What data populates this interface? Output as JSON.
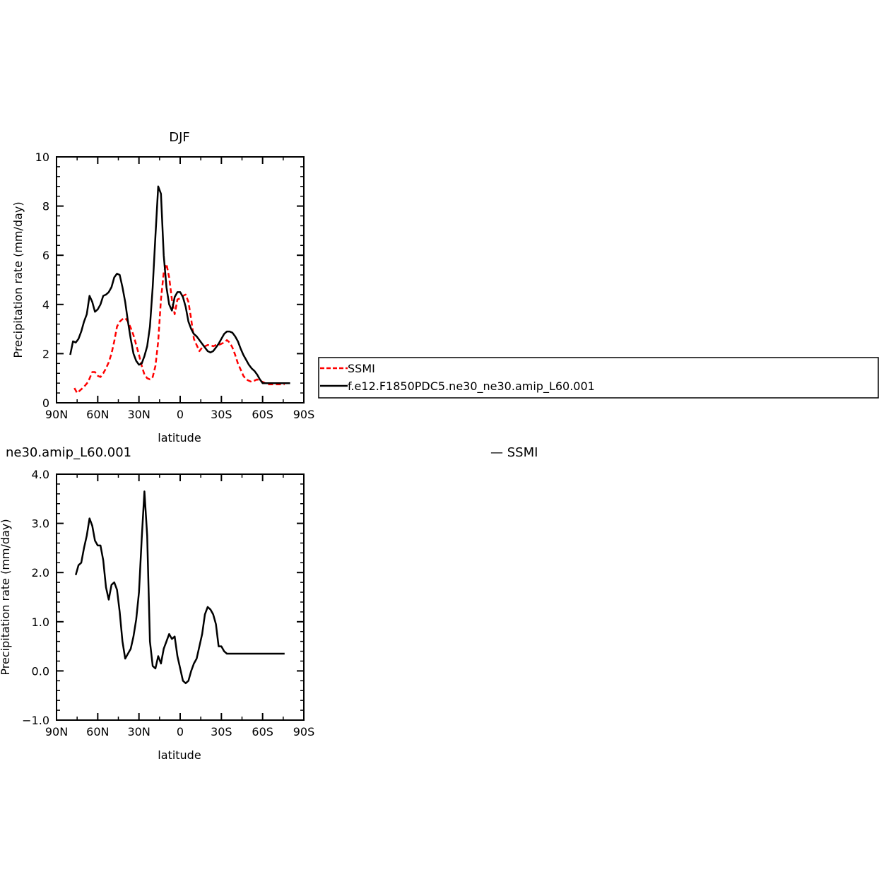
{
  "chart_data": [
    {
      "type": "line",
      "title": "DJF",
      "xlabel": "latitude",
      "ylabel": "Precipitation rate (mm/day)",
      "xlim": [
        90,
        -90
      ],
      "ylim": [
        0,
        10
      ],
      "xticks": [
        90,
        60,
        30,
        0,
        -30,
        -60,
        -90
      ],
      "xtick_labels": [
        "90N",
        "60N",
        "30N",
        "0",
        "30S",
        "60S",
        "90S"
      ],
      "yticks": [
        0,
        2,
        4,
        6,
        8,
        10
      ],
      "ytick_labels": [
        "0",
        "2",
        "4",
        "6",
        "8",
        "10"
      ],
      "grid": false,
      "legend_position": "right",
      "series": [
        {
          "name": "SSMI",
          "color": "#ff0000",
          "style": "dashed",
          "x": [
            77,
            75,
            73,
            70,
            67,
            64,
            62,
            60,
            58,
            56,
            54,
            52,
            50,
            48,
            46,
            44,
            42,
            40,
            38,
            36,
            34,
            32,
            30,
            28,
            26,
            24,
            22,
            20,
            18,
            16,
            14,
            12,
            10,
            8,
            6,
            4,
            2,
            0,
            -2,
            -4,
            -6,
            -8,
            -10,
            -12,
            -14,
            -16,
            -18,
            -20,
            -22,
            -24,
            -26,
            -28,
            -30,
            -32,
            -34,
            -36,
            -38,
            -40,
            -42,
            -44,
            -46,
            -48,
            -50,
            -52,
            -54,
            -56,
            -58,
            -60,
            -62,
            -64,
            -66,
            -68,
            -70,
            -72,
            -74,
            -76
          ],
          "y": [
            0.6,
            0.4,
            0.5,
            0.65,
            0.85,
            1.25,
            1.25,
            1.1,
            1.05,
            1.2,
            1.4,
            1.65,
            2.0,
            2.5,
            3.1,
            3.3,
            3.4,
            3.45,
            3.3,
            3.05,
            2.75,
            2.35,
            1.95,
            1.5,
            1.15,
            1.0,
            0.95,
            1.05,
            1.5,
            2.5,
            4.2,
            5.3,
            5.65,
            5.1,
            4.2,
            3.6,
            4.2,
            4.25,
            4.35,
            4.4,
            4.1,
            3.4,
            2.6,
            2.35,
            2.1,
            2.25,
            2.3,
            2.35,
            2.35,
            2.3,
            2.35,
            2.35,
            2.4,
            2.45,
            2.55,
            2.45,
            2.25,
            1.95,
            1.6,
            1.35,
            1.1,
            0.95,
            0.9,
            0.85,
            0.9,
            0.95,
            0.9,
            0.85,
            0.8,
            0.75,
            0.75,
            0.75,
            0.75,
            0.75,
            0.75,
            0.75
          ]
        },
        {
          "name": "f.e12.F1850PDC5.ne30_ne30.amip_L60.001",
          "color": "#000000",
          "style": "solid",
          "x": [
            80,
            78,
            76,
            74,
            72,
            70,
            68,
            66,
            64,
            62,
            60,
            58,
            56,
            54,
            52,
            50,
            48,
            46,
            44,
            42,
            40,
            38,
            36,
            34,
            32,
            30,
            28,
            26,
            24,
            22,
            20,
            18,
            16,
            14,
            12,
            10,
            8,
            6,
            4,
            2,
            0,
            -2,
            -4,
            -6,
            -8,
            -10,
            -12,
            -14,
            -16,
            -18,
            -20,
            -22,
            -24,
            -26,
            -28,
            -30,
            -32,
            -34,
            -36,
            -38,
            -40,
            -42,
            -44,
            -46,
            -48,
            -50,
            -52,
            -54,
            -56,
            -58,
            -60,
            -62,
            -64,
            -66,
            -68,
            -70,
            -72,
            -74,
            -76,
            -78,
            -80
          ],
          "y": [
            1.95,
            2.5,
            2.45,
            2.6,
            2.9,
            3.3,
            3.6,
            4.35,
            4.1,
            3.7,
            3.8,
            4.0,
            4.35,
            4.4,
            4.5,
            4.7,
            5.1,
            5.25,
            5.2,
            4.7,
            4.1,
            3.3,
            2.6,
            2.0,
            1.7,
            1.55,
            1.6,
            1.9,
            2.3,
            3.1,
            4.7,
            6.8,
            8.8,
            8.5,
            6.0,
            4.7,
            4.0,
            3.75,
            4.3,
            4.5,
            4.5,
            4.3,
            3.9,
            3.3,
            3.0,
            2.8,
            2.7,
            2.55,
            2.4,
            2.25,
            2.1,
            2.05,
            2.1,
            2.25,
            2.4,
            2.6,
            2.8,
            2.9,
            2.9,
            2.85,
            2.7,
            2.5,
            2.2,
            1.95,
            1.75,
            1.55,
            1.4,
            1.3,
            1.15,
            0.95,
            0.8,
            0.8,
            0.8,
            0.8,
            0.8,
            0.8,
            0.8,
            0.8,
            0.8,
            0.8,
            0.8
          ]
        }
      ]
    },
    {
      "type": "line",
      "title": "ne30.amip_L60.001",
      "legend_text": "— SSMI",
      "xlabel": "latitude",
      "ylabel": "Precipitation rate (mm/day)",
      "xlim": [
        90,
        -90
      ],
      "ylim": [
        -1.0,
        4.0
      ],
      "xticks": [
        90,
        60,
        30,
        0,
        -30,
        -60,
        -90
      ],
      "xtick_labels": [
        "90N",
        "60N",
        "30N",
        "0",
        "30S",
        "60S",
        "90S"
      ],
      "yticks": [
        -1.0,
        0.0,
        1.0,
        2.0,
        3.0,
        4.0
      ],
      "ytick_labels": [
        "−1.0",
        "0.0",
        "1.0",
        "2.0",
        "3.0",
        "4.0"
      ],
      "grid": false,
      "series": [
        {
          "color": "#000000",
          "style": "solid",
          "x": [
            76,
            74,
            72,
            70,
            68,
            66,
            64,
            62,
            60,
            58,
            56,
            54,
            52,
            50,
            48,
            46,
            44,
            42,
            40,
            38,
            36,
            34,
            32,
            30,
            28,
            26,
            24,
            22,
            20,
            18,
            16,
            14,
            12,
            10,
            8,
            6,
            4,
            2,
            0,
            -2,
            -4,
            -6,
            -8,
            -10,
            -12,
            -14,
            -16,
            -18,
            -20,
            -22,
            -24,
            -26,
            -28,
            -30,
            -32,
            -34,
            -36,
            -38,
            -40,
            -42,
            -44,
            -46,
            -48,
            -50,
            -52,
            -54,
            -56,
            -58,
            -60,
            -62,
            -64,
            -66,
            -68,
            -70,
            -72,
            -74,
            -76
          ],
          "y": [
            1.95,
            2.15,
            2.2,
            2.5,
            2.75,
            3.1,
            2.95,
            2.65,
            2.55,
            2.55,
            2.25,
            1.7,
            1.45,
            1.75,
            1.8,
            1.65,
            1.2,
            0.6,
            0.25,
            0.35,
            0.45,
            0.7,
            1.05,
            1.6,
            2.7,
            3.65,
            2.75,
            0.6,
            0.1,
            0.05,
            0.3,
            0.15,
            0.45,
            0.6,
            0.75,
            0.65,
            0.7,
            0.3,
            0.05,
            -0.2,
            -0.25,
            -0.2,
            0.0,
            0.15,
            0.25,
            0.5,
            0.75,
            1.15,
            1.3,
            1.25,
            1.15,
            0.95,
            0.5,
            0.5,
            0.4,
            0.35,
            0.35,
            0.35,
            0.35,
            0.35,
            0.35,
            0.35,
            0.35,
            0.35,
            0.35,
            0.35,
            0.35,
            0.35,
            0.35,
            0.35,
            0.35,
            0.35,
            0.35,
            0.35,
            0.35,
            0.35,
            0.35
          ]
        }
      ]
    }
  ]
}
